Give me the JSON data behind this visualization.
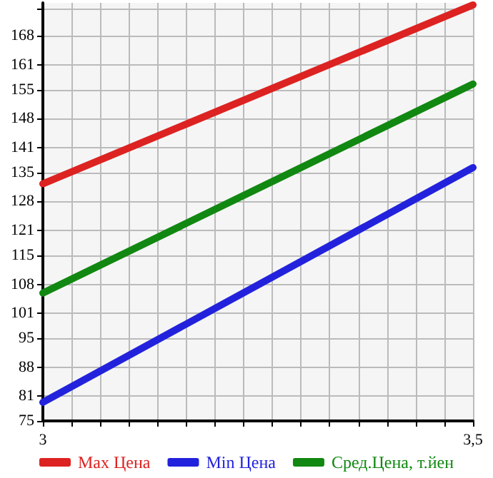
{
  "chart_data": {
    "type": "line",
    "x": [
      3,
      3.5
    ],
    "series": [
      {
        "name": "Max Цена",
        "color": "#dd2222",
        "values": [
          132.3,
          175.5
        ]
      },
      {
        "name": "Min Цена",
        "color": "#2222dd",
        "values": [
          79.5,
          136.2
        ]
      },
      {
        "name": "Сред.Цена, т.йен",
        "color": "#118811",
        "values": [
          105.9,
          156.4
        ]
      }
    ],
    "xlim": [
      3,
      3.5
    ],
    "xticks": [
      3,
      {
        "value": 3.0333,
        "label": null
      },
      {
        "value": 3.0667,
        "label": null
      },
      {
        "value": 3.1,
        "label": null
      },
      {
        "value": 3.1333,
        "label": null
      },
      {
        "value": 3.1667,
        "label": null
      },
      {
        "value": 3.2,
        "label": null
      },
      {
        "value": 3.2333,
        "label": null
      },
      {
        "value": 3.2667,
        "label": null
      },
      {
        "value": 3.3,
        "label": null
      },
      {
        "value": 3.3333,
        "label": null
      },
      {
        "value": 3.3667,
        "label": null
      },
      {
        "value": 3.4,
        "label": null
      },
      {
        "value": 3.4333,
        "label": null
      },
      {
        "value": 3.4667,
        "label": null
      },
      {
        "value": 3.5,
        "label": "3,5"
      }
    ],
    "ylim": [
      75,
      176
    ],
    "yticks": [
      75,
      81,
      88,
      95,
      101,
      108,
      115,
      121,
      128,
      135,
      141,
      148,
      155,
      161,
      168,
      {
        "value": 174.6,
        "label": null
      }
    ],
    "grid": true,
    "legend": "bottom",
    "marker": "none",
    "line_style": "solid"
  }
}
